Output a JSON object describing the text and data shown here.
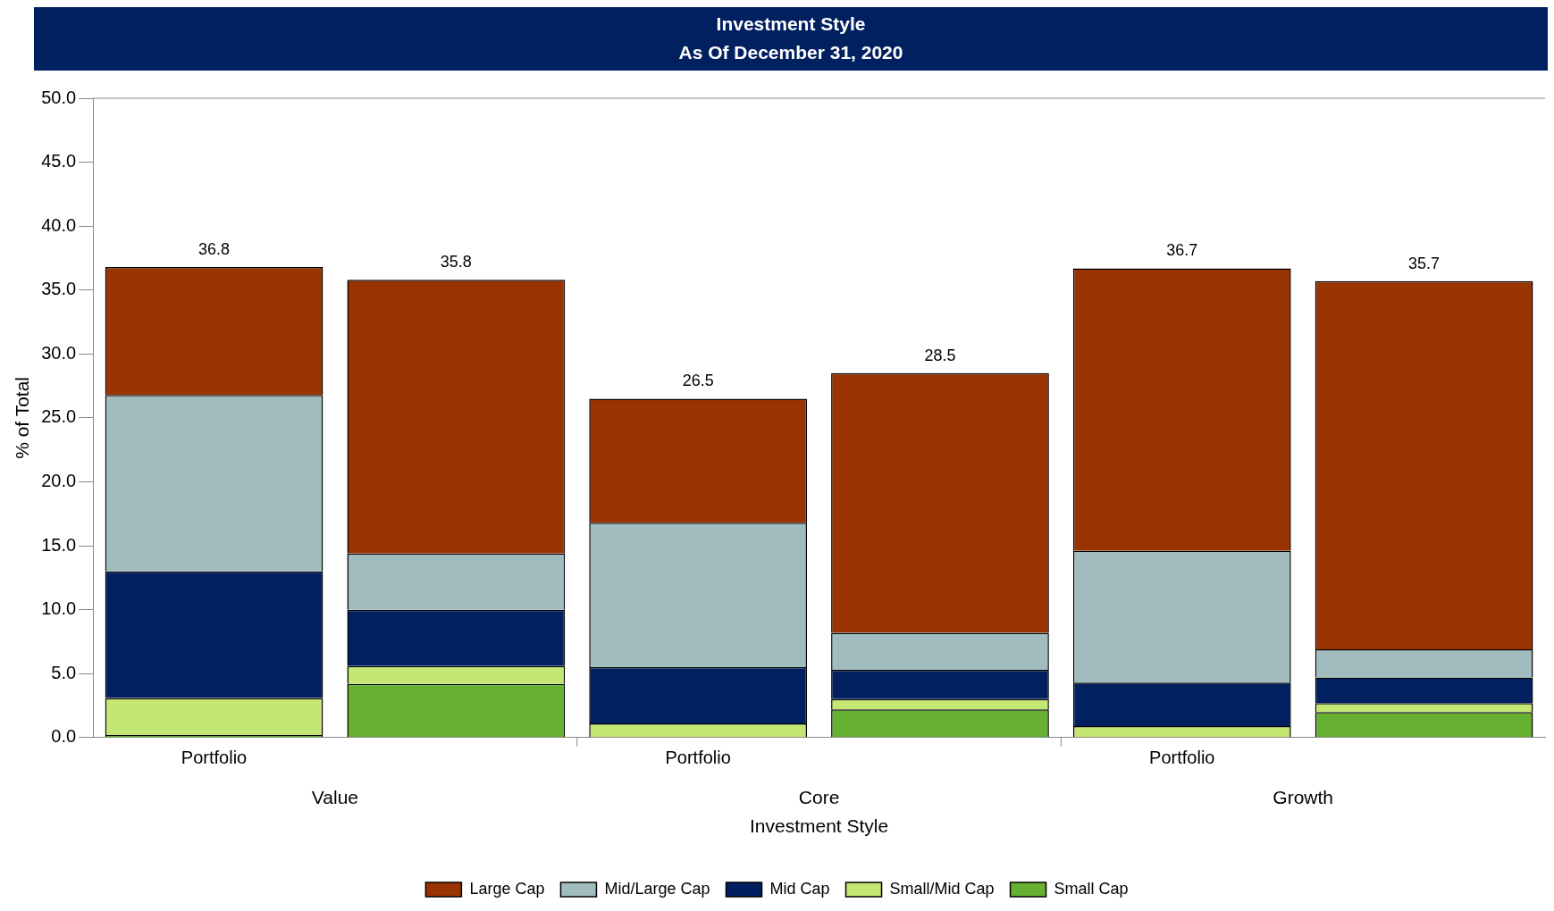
{
  "chart_data": {
    "type": "bar",
    "title": "Investment Style",
    "subtitle": "As Of December 31, 2020",
    "xlabel": "Investment Style",
    "ylabel": "% of Total",
    "categories": [
      "Portfolio",
      null,
      "Portfolio",
      null,
      "Portfolio",
      null
    ],
    "annotations": [
      "Value",
      "Core",
      "Growth"
    ],
    "stacked": true,
    "grid": false,
    "legend": "bottom",
    "ylim": [
      0,
      50
    ],
    "yticks": [
      {
        "value": 0,
        "label": "0.0"
      },
      {
        "value": 5,
        "label": "5.0"
      },
      {
        "value": 10,
        "label": "10.0"
      },
      {
        "value": 15,
        "label": "15.0"
      },
      {
        "value": 20,
        "label": "20.0"
      },
      {
        "value": 25,
        "label": "25.0"
      },
      {
        "value": 30,
        "label": "30.0"
      },
      {
        "value": 35,
        "label": "35.0"
      },
      {
        "value": 40,
        "label": "40.0"
      },
      {
        "value": 45,
        "label": "45.0"
      },
      {
        "value": 50,
        "label": "50.0"
      }
    ],
    "series": [
      {
        "name": "Small Cap",
        "color": "#66b032",
        "values": [
          0.2,
          4.2,
          0,
          2.2,
          0,
          2.0
        ]
      },
      {
        "name": "Small/Mid Cap",
        "color": "#c4e673",
        "values": [
          2.9,
          1.4,
          1.1,
          0.8,
          0.9,
          0.7
        ]
      },
      {
        "name": "Mid Cap",
        "color": "#002060",
        "values": [
          9.9,
          4.4,
          4.4,
          2.3,
          3.4,
          2.0
        ]
      },
      {
        "name": "Mid/Large Cap",
        "color": "#a0bcbf",
        "values": [
          13.8,
          4.4,
          11.3,
          2.9,
          10.3,
          2.2
        ]
      },
      {
        "name": "Large Cap",
        "color": "#993300",
        "values": [
          10.0,
          21.4,
          9.7,
          20.3,
          22.1,
          28.8
        ]
      }
    ],
    "totals": [
      "36.8",
      "35.8",
      "26.5",
      "28.5",
      "36.7",
      "35.7"
    ]
  }
}
